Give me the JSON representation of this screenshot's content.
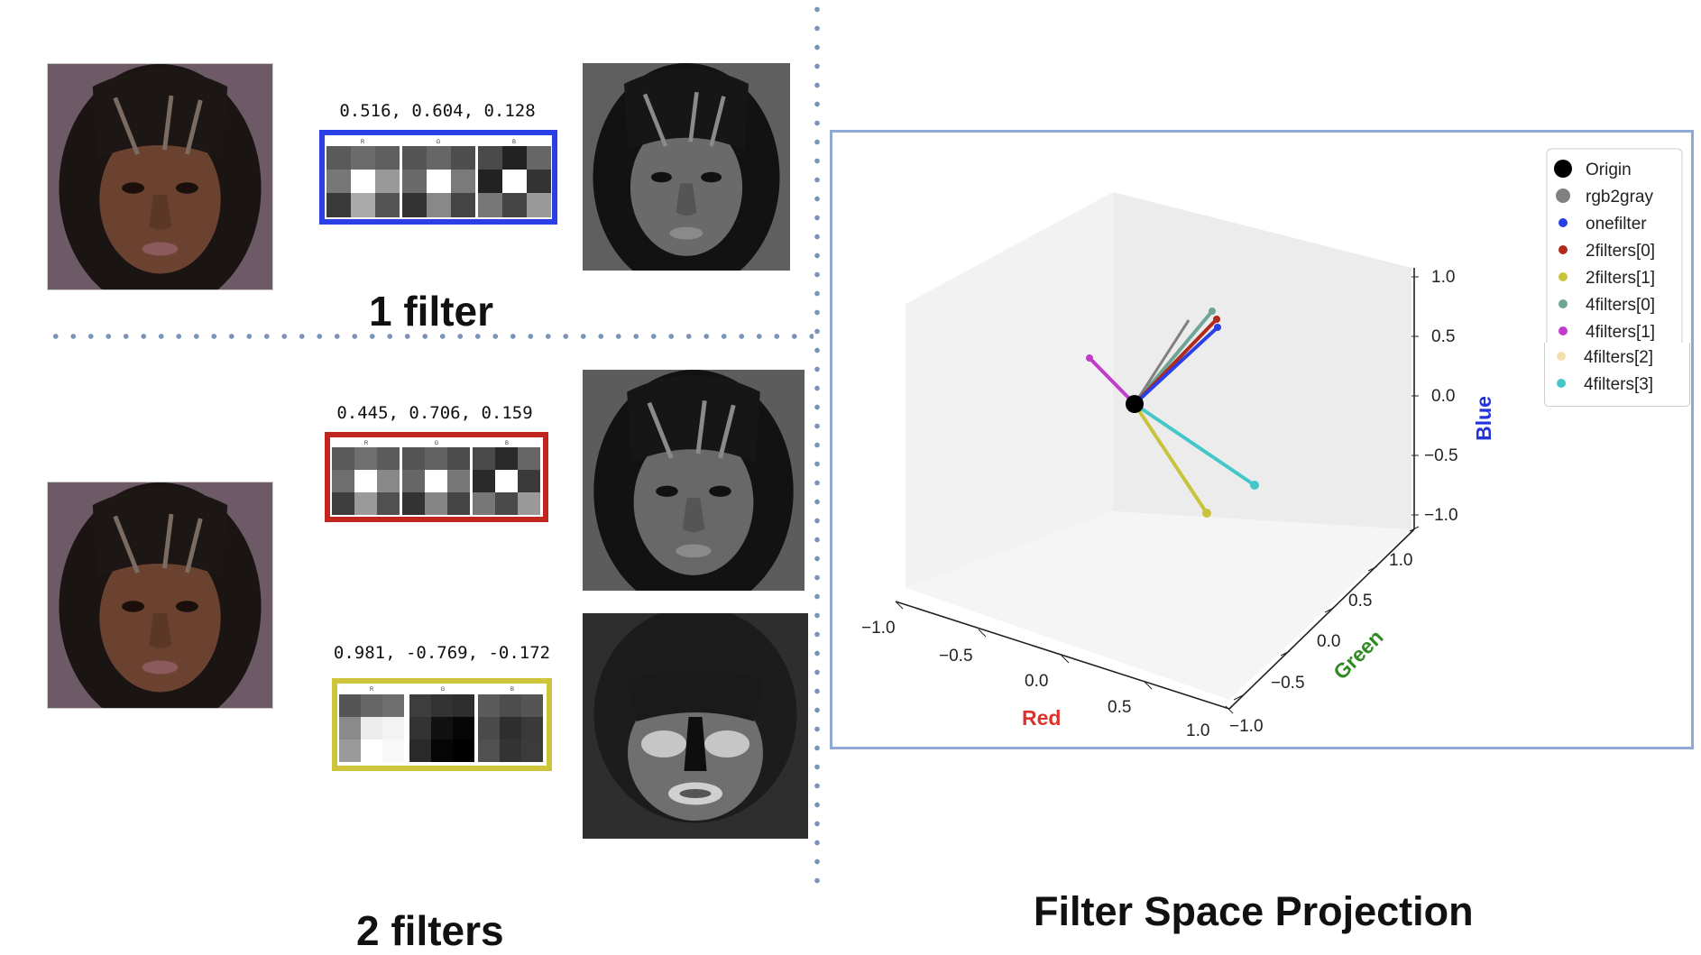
{
  "panels": {
    "one_filter": {
      "label": "1 filter",
      "coefficients": "0.516, 0.604, 0.128",
      "border_color": "#2b3fe6",
      "channels": [
        "R",
        "G",
        "B"
      ]
    },
    "two_filters": {
      "label": "2 filters",
      "filter_a": {
        "coefficients": "0.445, 0.706, 0.159",
        "border_color": "#c0261e",
        "channels": [
          "R",
          "G",
          "B"
        ]
      },
      "filter_b": {
        "coefficients": "0.981, -0.769, -0.172",
        "border_color": "#cfc53a",
        "channels": [
          "R",
          "G",
          "B"
        ]
      }
    }
  },
  "projection": {
    "title": "Filter Space Projection",
    "axes": {
      "x": {
        "label": "Red",
        "color": "#e0302a",
        "ticks": [
          "−1.0",
          "−0.5",
          "0.0",
          "0.5",
          "1.0"
        ]
      },
      "y": {
        "label": "Green",
        "color": "#2f8a22",
        "ticks": [
          "−1.0",
          "−0.5",
          "0.0",
          "0.5",
          "1.0"
        ]
      },
      "z": {
        "label": "Blue",
        "color": "#2233dd",
        "ticks": [
          "−1.0",
          "−0.5",
          "0.0",
          "0.5",
          "1.0"
        ]
      }
    },
    "legend": [
      {
        "name": "Origin",
        "color": "#000000"
      },
      {
        "name": "rgb2gray",
        "color": "#808080"
      },
      {
        "name": "onefilter",
        "color": "#2b3fe6"
      },
      {
        "name": "2filters[0]",
        "color": "#b22a1e"
      },
      {
        "name": "2filters[1]",
        "color": "#c9c23c"
      },
      {
        "name": "4filters[0]",
        "color": "#6fa596"
      },
      {
        "name": "4filters[1]",
        "color": "#c23cc9"
      },
      {
        "name": "4filters[2]",
        "color": "#f5deac"
      },
      {
        "name": "4filters[3]",
        "color": "#45c7c9"
      }
    ]
  }
}
